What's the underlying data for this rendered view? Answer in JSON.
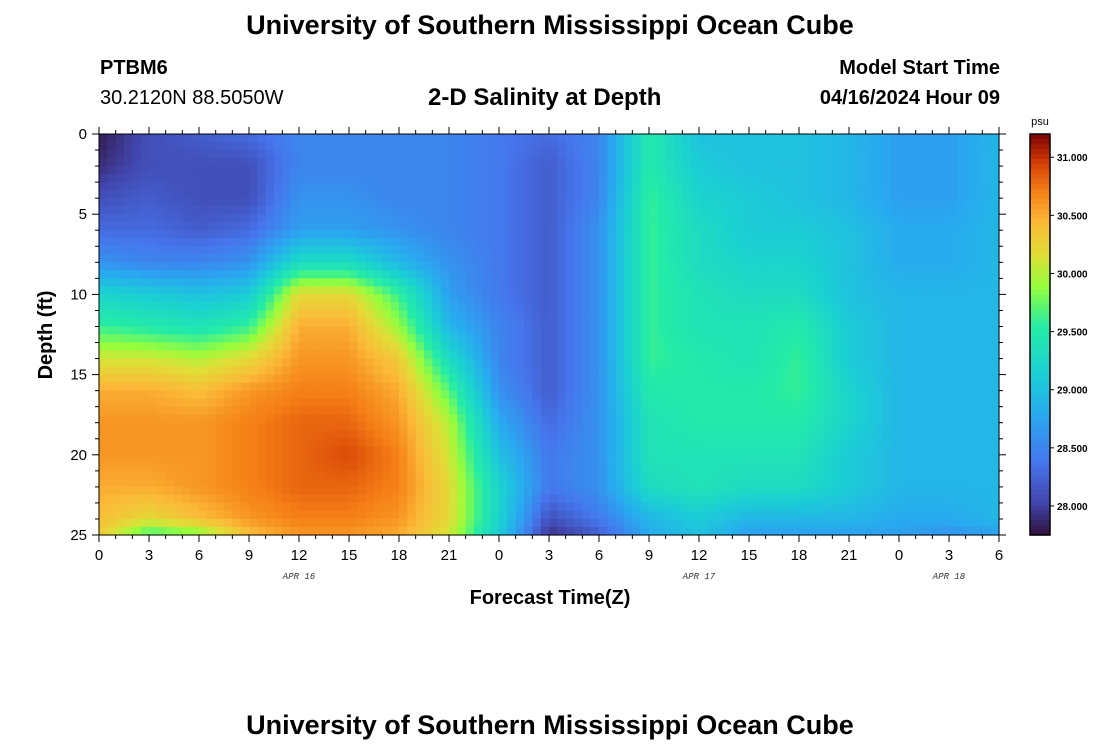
{
  "header": {
    "title": "University of Southern Mississippi Ocean Cube",
    "station": "PTBM6",
    "latlon": "30.2120N  88.5050W",
    "subtitle": "2-D Salinity at Depth",
    "model_start_label": "Model Start Time",
    "model_start_value": "04/16/2024 Hour 09",
    "footer_title": "University of Southern Mississippi Ocean Cube"
  },
  "chart_data": {
    "type": "heatmap",
    "title": "2-D Salinity at Depth",
    "xlabel": "Forecast Time(Z)",
    "ylabel": "Depth (ft)",
    "x_hours": [
      0,
      54
    ],
    "x_ticks": [
      {
        "h": 0,
        "label": "0"
      },
      {
        "h": 3,
        "label": "3"
      },
      {
        "h": 6,
        "label": "6"
      },
      {
        "h": 9,
        "label": "9"
      },
      {
        "h": 12,
        "label": "12"
      },
      {
        "h": 15,
        "label": "15"
      },
      {
        "h": 18,
        "label": "18"
      },
      {
        "h": 21,
        "label": "21"
      },
      {
        "h": 24,
        "label": "0"
      },
      {
        "h": 27,
        "label": "3"
      },
      {
        "h": 30,
        "label": "6"
      },
      {
        "h": 33,
        "label": "9"
      },
      {
        "h": 36,
        "label": "12"
      },
      {
        "h": 39,
        "label": "15"
      },
      {
        "h": 42,
        "label": "18"
      },
      {
        "h": 45,
        "label": "21"
      },
      {
        "h": 48,
        "label": "0"
      },
      {
        "h": 51,
        "label": "3"
      },
      {
        "h": 54,
        "label": "6"
      }
    ],
    "date_labels": [
      {
        "h": 12,
        "label": "APR 16"
      },
      {
        "h": 36,
        "label": "APR 17"
      },
      {
        "h": 51,
        "label": "APR 18"
      }
    ],
    "ylim": [
      0,
      25
    ],
    "y_ticks": [
      0,
      5,
      10,
      15,
      20,
      25
    ],
    "colorbar": {
      "unit": "psu",
      "min": 27.75,
      "max": 31.2,
      "ticks": [
        "31.000",
        "30.500",
        "30.000",
        "29.500",
        "29.000",
        "28.500",
        "28.000"
      ]
    },
    "depths": [
      0,
      2,
      4,
      6,
      8,
      10,
      12,
      14,
      16,
      18,
      20,
      22,
      24,
      25
    ],
    "time_hours": [
      0,
      3,
      6,
      9,
      12,
      15,
      18,
      21,
      24,
      27,
      30,
      33,
      36,
      39,
      42,
      45,
      48,
      51,
      54
    ],
    "salinity_psu": [
      [
        27.8,
        28.1,
        28.2,
        28.3,
        28.5,
        28.5,
        28.5,
        28.5,
        28.4,
        28.3,
        28.5,
        29.5,
        29.0,
        29.0,
        29.0,
        28.9,
        28.7,
        28.7,
        28.9
      ],
      [
        27.9,
        28.1,
        28.1,
        28.1,
        28.5,
        28.5,
        28.5,
        28.5,
        28.4,
        28.2,
        28.5,
        29.5,
        29.1,
        29.0,
        29.0,
        28.9,
        28.7,
        28.7,
        28.9
      ],
      [
        28.1,
        28.2,
        28.1,
        28.1,
        28.6,
        28.6,
        28.5,
        28.5,
        28.4,
        28.2,
        28.5,
        29.6,
        29.2,
        29.1,
        29.0,
        28.9,
        28.7,
        28.7,
        28.9
      ],
      [
        28.3,
        28.3,
        28.2,
        28.3,
        28.7,
        28.7,
        28.6,
        28.5,
        28.4,
        28.2,
        28.6,
        29.6,
        29.3,
        29.1,
        29.1,
        29.0,
        28.8,
        28.8,
        28.9
      ],
      [
        28.6,
        28.5,
        28.5,
        28.6,
        29.3,
        29.3,
        28.9,
        28.6,
        28.4,
        28.2,
        28.6,
        29.6,
        29.3,
        29.2,
        29.2,
        29.0,
        28.8,
        28.8,
        28.9
      ],
      [
        29.2,
        29.1,
        29.0,
        29.1,
        30.2,
        30.2,
        29.6,
        28.7,
        28.4,
        28.2,
        28.6,
        29.6,
        29.4,
        29.3,
        29.3,
        29.0,
        28.9,
        28.9,
        28.9
      ],
      [
        29.6,
        29.5,
        29.4,
        29.6,
        30.5,
        30.5,
        29.9,
        28.9,
        28.5,
        28.2,
        28.6,
        29.6,
        29.4,
        29.4,
        29.5,
        29.1,
        28.9,
        28.9,
        28.9
      ],
      [
        30.1,
        30.1,
        30.0,
        30.2,
        30.6,
        30.6,
        30.3,
        29.3,
        28.5,
        28.2,
        28.6,
        29.6,
        29.5,
        29.4,
        29.6,
        29.1,
        28.9,
        28.9,
        28.9
      ],
      [
        30.5,
        30.5,
        30.4,
        30.6,
        30.7,
        30.7,
        30.5,
        29.7,
        28.6,
        28.2,
        28.6,
        29.5,
        29.5,
        29.5,
        29.6,
        29.2,
        28.9,
        28.9,
        28.9
      ],
      [
        30.6,
        30.6,
        30.6,
        30.7,
        30.8,
        30.8,
        30.6,
        30.0,
        28.8,
        28.3,
        28.6,
        29.4,
        29.5,
        29.5,
        29.5,
        29.2,
        28.9,
        28.9,
        28.9
      ],
      [
        30.6,
        30.6,
        30.6,
        30.7,
        30.8,
        30.9,
        30.7,
        30.1,
        29.0,
        28.4,
        28.6,
        29.4,
        29.4,
        29.4,
        29.4,
        29.1,
        28.9,
        28.9,
        28.9
      ],
      [
        30.5,
        30.5,
        30.6,
        30.7,
        30.8,
        30.8,
        30.7,
        30.2,
        29.2,
        28.4,
        28.6,
        29.3,
        29.4,
        29.3,
        29.3,
        29.1,
        28.9,
        28.9,
        28.9
      ],
      [
        30.4,
        30.2,
        30.4,
        30.6,
        30.7,
        30.7,
        30.6,
        30.2,
        29.2,
        28.1,
        28.4,
        28.9,
        29.1,
        28.9,
        28.9,
        28.9,
        28.8,
        28.8,
        28.9
      ],
      [
        30.3,
        29.6,
        29.8,
        30.4,
        30.6,
        30.6,
        30.5,
        30.1,
        29.1,
        27.9,
        28.2,
        28.8,
        29.0,
        28.7,
        28.7,
        28.7,
        28.7,
        28.6,
        28.7
      ]
    ]
  }
}
